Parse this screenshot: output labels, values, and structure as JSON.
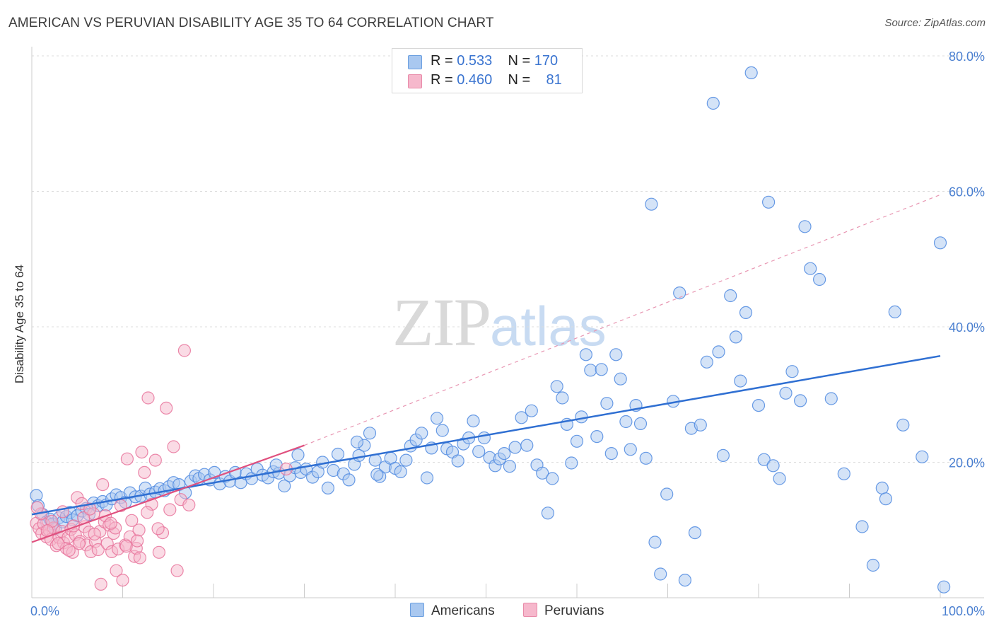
{
  "header": {
    "title": "AMERICAN VS PERUVIAN DISABILITY AGE 35 TO 64 CORRELATION CHART",
    "source": "Source: ZipAtlas.com"
  },
  "watermark": {
    "zip": "ZIP",
    "atlas": "atlas"
  },
  "legend": {
    "rows": [
      {
        "r_label": "R = ",
        "r_value": "0.533",
        "n_label": "N = ",
        "n_value": "170",
        "color": "#a9c8f0"
      },
      {
        "r_label": "R = ",
        "r_value": "0.460",
        "n_label": "N = ",
        "n_value": "81",
        "color": "#f6b8cc"
      }
    ]
  },
  "bottom_legend": [
    {
      "label": "Americans",
      "color": "#a9c8f0"
    },
    {
      "label": "Peruvians",
      "color": "#f6b8cc"
    }
  ],
  "chart_data": {
    "type": "scatter",
    "title": "AMERICAN VS PERUVIAN DISABILITY AGE 35 TO 64 CORRELATION CHART",
    "xlabel": "",
    "ylabel": "Disability Age 35 to 64",
    "xlim": [
      0,
      100
    ],
    "ylim": [
      0,
      80
    ],
    "x_tick_labels": [
      "0.0%",
      "100.0%"
    ],
    "y_ticks": [
      20,
      40,
      60,
      80
    ],
    "y_tick_labels": [
      "20.0%",
      "40.0%",
      "60.0%",
      "80.0%"
    ],
    "grid": true,
    "legend_position": "top-center",
    "series": [
      {
        "name": "Americans",
        "color": "#4f8ae0",
        "fill": "#a9c8f0",
        "trend": {
          "x": [
            0,
            100
          ],
          "y": [
            12.3,
            35.7
          ],
          "style": "solid"
        },
        "points": [
          [
            0.5,
            15.1
          ],
          [
            0.7,
            13.6
          ],
          [
            1.2,
            12.3
          ],
          [
            1.6,
            11.2
          ],
          [
            2.0,
            11.6
          ],
          [
            2.3,
            10.9
          ],
          [
            2.6,
            10.2
          ],
          [
            3.0,
            11.8
          ],
          [
            3.4,
            11.2
          ],
          [
            3.8,
            12.0
          ],
          [
            4.2,
            12.6
          ],
          [
            4.5,
            11.5
          ],
          [
            5.0,
            12.1
          ],
          [
            5.5,
            12.8
          ],
          [
            6.0,
            13.2
          ],
          [
            6.3,
            12.3
          ],
          [
            6.8,
            14.0
          ],
          [
            7.3,
            13.6
          ],
          [
            7.8,
            14.2
          ],
          [
            8.2,
            13.7
          ],
          [
            8.8,
            14.6
          ],
          [
            9.3,
            15.2
          ],
          [
            9.8,
            14.8
          ],
          [
            10.3,
            14.1
          ],
          [
            10.8,
            15.5
          ],
          [
            11.4,
            14.9
          ],
          [
            12.0,
            15.0
          ],
          [
            12.5,
            16.2
          ],
          [
            13.0,
            15.3
          ],
          [
            13.6,
            15.6
          ],
          [
            14.1,
            16.1
          ],
          [
            14.6,
            15.8
          ],
          [
            15.1,
            16.4
          ],
          [
            15.6,
            17.0
          ],
          [
            16.2,
            16.7
          ],
          [
            16.9,
            15.5
          ],
          [
            17.5,
            17.2
          ],
          [
            18.0,
            18.0
          ],
          [
            18.4,
            17.6
          ],
          [
            19.0,
            18.2
          ],
          [
            19.6,
            17.4
          ],
          [
            20.1,
            18.5
          ],
          [
            20.7,
            16.8
          ],
          [
            21.3,
            17.9
          ],
          [
            21.8,
            17.2
          ],
          [
            22.4,
            18.5
          ],
          [
            23.0,
            17.0
          ],
          [
            23.6,
            18.3
          ],
          [
            24.2,
            17.6
          ],
          [
            24.8,
            19.0
          ],
          [
            25.4,
            18.1
          ],
          [
            26.0,
            17.7
          ],
          [
            26.6,
            18.6
          ],
          [
            27.2,
            18.4
          ],
          [
            27.8,
            16.5
          ],
          [
            28.4,
            18.0
          ],
          [
            29.0,
            19.2
          ],
          [
            29.6,
            18.5
          ],
          [
            30.2,
            19.0
          ],
          [
            30.9,
            17.8
          ],
          [
            31.5,
            18.6
          ],
          [
            32.0,
            20.0
          ],
          [
            32.6,
            16.2
          ],
          [
            33.2,
            18.8
          ],
          [
            33.7,
            21.2
          ],
          [
            34.3,
            18.3
          ],
          [
            34.9,
            17.4
          ],
          [
            35.5,
            19.7
          ],
          [
            36.0,
            21.0
          ],
          [
            36.6,
            22.5
          ],
          [
            37.2,
            24.3
          ],
          [
            37.8,
            20.3
          ],
          [
            38.3,
            17.9
          ],
          [
            38.9,
            19.3
          ],
          [
            39.5,
            20.6
          ],
          [
            40.0,
            19.1
          ],
          [
            40.6,
            18.6
          ],
          [
            41.2,
            20.3
          ],
          [
            41.7,
            22.4
          ],
          [
            42.3,
            23.3
          ],
          [
            42.9,
            24.3
          ],
          [
            43.5,
            17.7
          ],
          [
            44.0,
            22.1
          ],
          [
            44.6,
            26.5
          ],
          [
            45.2,
            24.7
          ],
          [
            45.7,
            22.0
          ],
          [
            46.3,
            21.5
          ],
          [
            46.9,
            20.2
          ],
          [
            47.5,
            22.7
          ],
          [
            48.1,
            23.6
          ],
          [
            48.6,
            26.1
          ],
          [
            49.2,
            21.6
          ],
          [
            49.8,
            23.6
          ],
          [
            50.4,
            20.7
          ],
          [
            51.0,
            19.5
          ],
          [
            51.5,
            20.5
          ],
          [
            52.0,
            21.3
          ],
          [
            52.6,
            19.4
          ],
          [
            53.2,
            22.2
          ],
          [
            53.9,
            26.6
          ],
          [
            54.5,
            22.5
          ],
          [
            55.0,
            27.6
          ],
          [
            55.6,
            19.6
          ],
          [
            56.2,
            18.4
          ],
          [
            56.8,
            12.5
          ],
          [
            57.3,
            17.6
          ],
          [
            57.8,
            31.2
          ],
          [
            58.4,
            29.5
          ],
          [
            58.9,
            25.6
          ],
          [
            59.4,
            19.9
          ],
          [
            60.0,
            23.1
          ],
          [
            60.5,
            26.7
          ],
          [
            61.0,
            35.9
          ],
          [
            61.5,
            33.6
          ],
          [
            62.2,
            23.8
          ],
          [
            62.7,
            33.7
          ],
          [
            63.3,
            28.7
          ],
          [
            63.8,
            21.3
          ],
          [
            64.3,
            35.9
          ],
          [
            64.8,
            32.3
          ],
          [
            65.4,
            26.0
          ],
          [
            65.9,
            21.9
          ],
          [
            66.5,
            28.4
          ],
          [
            67.0,
            25.7
          ],
          [
            67.6,
            20.6
          ],
          [
            68.2,
            58.1
          ],
          [
            68.6,
            8.2
          ],
          [
            69.2,
            3.5
          ],
          [
            69.9,
            15.3
          ],
          [
            70.6,
            29.0
          ],
          [
            71.3,
            45.0
          ],
          [
            71.9,
            2.6
          ],
          [
            72.6,
            25.0
          ],
          [
            73.0,
            9.6
          ],
          [
            73.6,
            25.5
          ],
          [
            74.3,
            34.8
          ],
          [
            75.0,
            73.0
          ],
          [
            75.6,
            36.3
          ],
          [
            76.1,
            21.0
          ],
          [
            76.9,
            44.6
          ],
          [
            77.5,
            38.5
          ],
          [
            78.0,
            32.0
          ],
          [
            78.6,
            42.1
          ],
          [
            79.2,
            77.5
          ],
          [
            80.0,
            28.4
          ],
          [
            80.6,
            20.4
          ],
          [
            81.1,
            58.4
          ],
          [
            81.6,
            19.5
          ],
          [
            82.3,
            17.6
          ],
          [
            83.0,
            30.2
          ],
          [
            83.7,
            33.4
          ],
          [
            84.6,
            29.1
          ],
          [
            85.1,
            54.8
          ],
          [
            85.7,
            48.6
          ],
          [
            86.7,
            47.0
          ],
          [
            88.0,
            29.4
          ],
          [
            89.4,
            18.3
          ],
          [
            91.4,
            10.5
          ],
          [
            92.6,
            4.8
          ],
          [
            93.6,
            16.2
          ],
          [
            94.0,
            14.6
          ],
          [
            95.0,
            42.2
          ],
          [
            95.9,
            25.5
          ],
          [
            98.0,
            20.8
          ],
          [
            100.0,
            52.4
          ],
          [
            100.4,
            1.6
          ],
          [
            26.9,
            19.6
          ],
          [
            29.3,
            21.1
          ],
          [
            35.8,
            23.0
          ],
          [
            38.0,
            18.2
          ]
        ]
      },
      {
        "name": "Peruvians",
        "color": "#e8739b",
        "fill": "#f6b8cc",
        "trend": {
          "x": [
            0,
            30
          ],
          "y": [
            8.2,
            22.5
          ],
          "style": "solid"
        },
        "trend_extension": {
          "x": [
            30,
            100
          ],
          "y": [
            22.5,
            59.5
          ],
          "style": "dashed"
        },
        "points": [
          [
            0.5,
            11.0
          ],
          [
            0.8,
            10.2
          ],
          [
            1.1,
            9.5
          ],
          [
            1.3,
            10.9
          ],
          [
            1.6,
            9.0
          ],
          [
            1.9,
            10.0
          ],
          [
            2.1,
            8.6
          ],
          [
            2.4,
            10.3
          ],
          [
            2.7,
            7.7
          ],
          [
            3.0,
            8.9
          ],
          [
            3.3,
            9.8
          ],
          [
            3.5,
            8.1
          ],
          [
            3.8,
            7.3
          ],
          [
            4.0,
            8.9
          ],
          [
            4.3,
            10.1
          ],
          [
            4.5,
            6.7
          ],
          [
            4.8,
            9.3
          ],
          [
            5.0,
            14.8
          ],
          [
            5.3,
            8.3
          ],
          [
            5.5,
            13.9
          ],
          [
            5.8,
            10.5
          ],
          [
            6.0,
            7.8
          ],
          [
            6.3,
            9.7
          ],
          [
            6.5,
            6.8
          ],
          [
            6.8,
            12.4
          ],
          [
            7.0,
            8.3
          ],
          [
            7.3,
            7.1
          ],
          [
            7.5,
            9.8
          ],
          [
            7.8,
            16.7
          ],
          [
            8.0,
            11.2
          ],
          [
            8.3,
            8.0
          ],
          [
            8.5,
            10.7
          ],
          [
            8.8,
            6.8
          ],
          [
            9.0,
            9.5
          ],
          [
            9.3,
            4.0
          ],
          [
            9.5,
            7.2
          ],
          [
            9.8,
            13.6
          ],
          [
            10.0,
            2.6
          ],
          [
            10.3,
            7.8
          ],
          [
            10.5,
            20.5
          ],
          [
            10.8,
            9.0
          ],
          [
            11.0,
            11.4
          ],
          [
            11.3,
            6.1
          ],
          [
            11.5,
            7.3
          ],
          [
            11.8,
            10.0
          ],
          [
            12.1,
            21.5
          ],
          [
            12.4,
            18.5
          ],
          [
            12.8,
            29.5
          ],
          [
            13.2,
            13.8
          ],
          [
            13.6,
            20.3
          ],
          [
            14.0,
            6.7
          ],
          [
            14.4,
            9.6
          ],
          [
            14.8,
            28.0
          ],
          [
            15.2,
            13.0
          ],
          [
            15.6,
            22.3
          ],
          [
            16.0,
            4.0
          ],
          [
            16.4,
            14.5
          ],
          [
            16.8,
            36.5
          ],
          [
            17.3,
            13.7
          ],
          [
            1.0,
            12.4
          ],
          [
            2.2,
            11.3
          ],
          [
            3.4,
            12.7
          ],
          [
            4.6,
            10.6
          ],
          [
            5.7,
            11.8
          ],
          [
            6.9,
            9.4
          ],
          [
            8.1,
            12.1
          ],
          [
            9.2,
            10.3
          ],
          [
            10.4,
            7.6
          ],
          [
            11.6,
            8.4
          ],
          [
            12.7,
            12.6
          ],
          [
            13.9,
            10.2
          ],
          [
            0.6,
            13.3
          ],
          [
            1.7,
            9.9
          ],
          [
            2.9,
            8.0
          ],
          [
            4.1,
            7.0
          ],
          [
            5.2,
            8.0
          ],
          [
            6.4,
            13.1
          ],
          [
            7.6,
            2.0
          ],
          [
            8.7,
            11.0
          ],
          [
            11.9,
            5.9
          ],
          [
            28.0,
            19.0
          ]
        ]
      }
    ]
  }
}
